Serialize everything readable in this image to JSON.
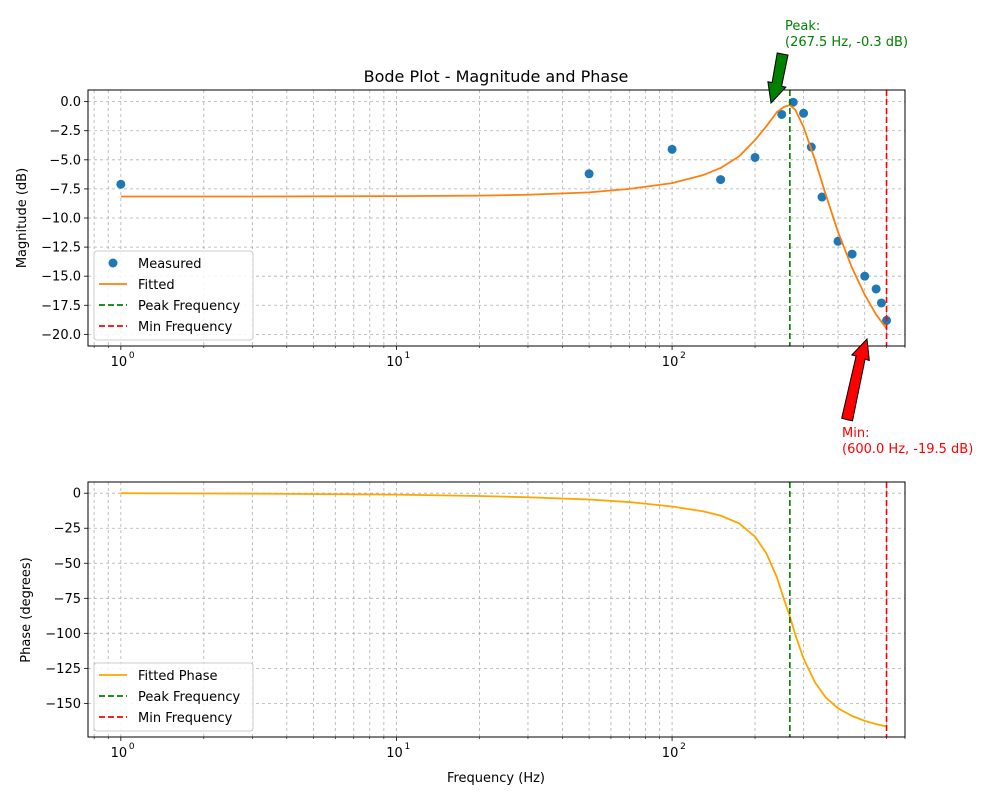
{
  "chart_data": [
    {
      "type": "line",
      "title": "Bode Plot - Magnitude and Phase",
      "xlabel": "",
      "ylabel": "Magnitude (dB)",
      "xscale": "log",
      "xlim": [
        0.76,
        700
      ],
      "ylim": [
        -21.0,
        1.0
      ],
      "x_ticks": [
        {
          "value": 1,
          "base": "10",
          "exp": "0"
        },
        {
          "value": 10,
          "base": "10",
          "exp": "1"
        },
        {
          "value": 100,
          "base": "10",
          "exp": "2"
        }
      ],
      "y_ticks": [
        0.0,
        -2.5,
        -5.0,
        -7.5,
        -10.0,
        -12.5,
        -15.0,
        -17.5,
        -20.0
      ],
      "y_tick_labels": [
        "0.0",
        "−2.5",
        "−5.0",
        "−7.5",
        "−10.0",
        "−12.5",
        "−15.0",
        "−17.5",
        "−20.0"
      ],
      "grid": true,
      "legend_position": "lower-left",
      "colors": {
        "measured": "#1f77b4",
        "fitted": "#ff7f0e",
        "peak": "#008000",
        "min": "#ff0000"
      },
      "series": [
        {
          "name": "Measured",
          "style": "markers",
          "x": [
            1,
            50,
            100,
            150,
            200,
            250,
            275,
            300,
            320,
            350,
            400,
            450,
            500,
            550,
            575,
            600
          ],
          "y": [
            -7.1,
            -6.2,
            -4.1,
            -6.7,
            -4.8,
            -1.1,
            -0.05,
            -1.0,
            -3.9,
            -8.2,
            -12.0,
            -13.1,
            -15.0,
            -16.1,
            -17.3,
            -18.8
          ]
        },
        {
          "name": "Fitted",
          "style": "line",
          "x": [
            1,
            3,
            10,
            20,
            30,
            50,
            70,
            100,
            130,
            150,
            175,
            200,
            220,
            240,
            255,
            267.5,
            280,
            300,
            330,
            360,
            400,
            450,
            500,
            550,
            600
          ],
          "y": [
            -8.15,
            -8.15,
            -8.12,
            -8.08,
            -8.0,
            -7.8,
            -7.5,
            -7.0,
            -6.3,
            -5.7,
            -4.7,
            -3.3,
            -2.1,
            -0.9,
            -0.45,
            -0.3,
            -0.7,
            -2.2,
            -5.0,
            -7.9,
            -11.2,
            -14.3,
            -16.6,
            -18.3,
            -19.5
          ]
        },
        {
          "name": "Peak Frequency",
          "style": "vline",
          "x": 267.5
        },
        {
          "name": "Min Frequency",
          "style": "vline",
          "x": 600
        }
      ],
      "annotations": [
        {
          "kind": "peak",
          "lines": [
            "Peak:",
            "(267.5 Hz, -0.3 dB)"
          ],
          "x": 267.5,
          "y": -0.3
        },
        {
          "kind": "min",
          "lines": [
            "Min:",
            "(600.0 Hz, -19.5 dB)"
          ],
          "x": 600,
          "y": -19.5
        }
      ]
    },
    {
      "type": "line",
      "title": "",
      "xlabel": "Frequency (Hz)",
      "ylabel": "Phase (degrees)",
      "xscale": "log",
      "xlim": [
        0.76,
        700
      ],
      "ylim": [
        -174,
        8
      ],
      "x_ticks": [
        {
          "value": 1,
          "base": "10",
          "exp": "0"
        },
        {
          "value": 10,
          "base": "10",
          "exp": "1"
        },
        {
          "value": 100,
          "base": "10",
          "exp": "2"
        }
      ],
      "y_ticks": [
        0,
        -25,
        -50,
        -75,
        -100,
        -125,
        -150
      ],
      "y_tick_labels": [
        "0",
        "−25",
        "−50",
        "−75",
        "−100",
        "−125",
        "−150"
      ],
      "grid": true,
      "legend_position": "lower-left",
      "colors": {
        "phase": "#ffa500",
        "peak": "#008000",
        "min": "#ff0000"
      },
      "series": [
        {
          "name": "Fitted Phase",
          "style": "line",
          "x": [
            1,
            3,
            10,
            20,
            30,
            50,
            70,
            100,
            130,
            150,
            175,
            200,
            220,
            240,
            255,
            267.5,
            280,
            300,
            330,
            360,
            400,
            450,
            500,
            550,
            600
          ],
          "y": [
            0,
            -0.3,
            -1.0,
            -2.0,
            -2.9,
            -4.5,
            -6.3,
            -9.5,
            -13.0,
            -16.0,
            -21.5,
            -31.0,
            -43.0,
            -60.0,
            -76.0,
            -88.0,
            -101.0,
            -118.0,
            -135.0,
            -145.5,
            -153.5,
            -159.0,
            -162.5,
            -164.8,
            -166.5
          ]
        },
        {
          "name": "Peak Frequency",
          "style": "vline",
          "x": 267.5
        },
        {
          "name": "Min Frequency",
          "style": "vline",
          "x": 600
        }
      ]
    }
  ]
}
